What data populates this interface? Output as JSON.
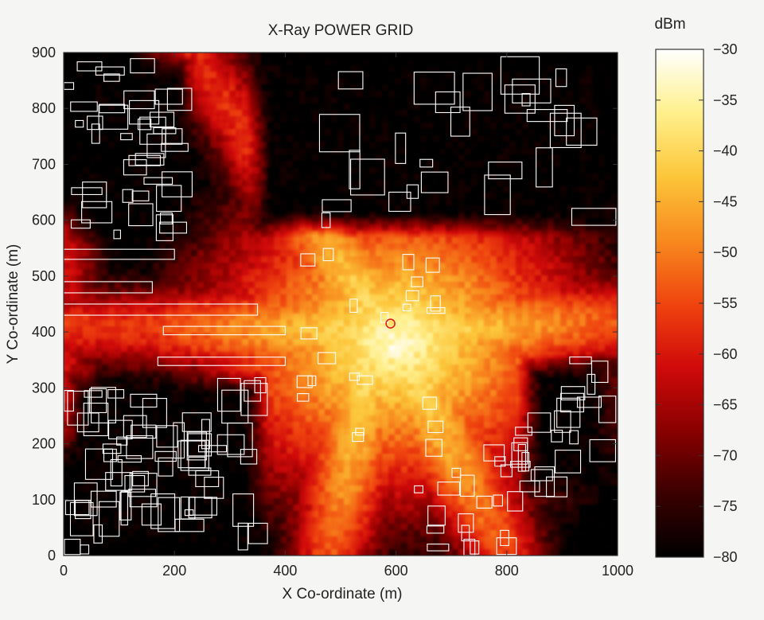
{
  "chart_data": {
    "type": "heatmap",
    "title": "X-Ray POWER GRID",
    "xlabel": "X Co-ordinate (m)",
    "ylabel": "Y Co-ordinate (m)",
    "xlim": [
      0,
      1000
    ],
    "ylim": [
      0,
      900
    ],
    "x_ticks": [
      0,
      200,
      400,
      600,
      800,
      1000
    ],
    "y_ticks": [
      0,
      100,
      200,
      300,
      400,
      500,
      600,
      700,
      800,
      900
    ],
    "grid": false,
    "colorbar": {
      "label": "dBm",
      "range": [
        -80,
        -30
      ],
      "ticks": [
        -30,
        -35,
        -40,
        -45,
        -50,
        -55,
        -60,
        -65,
        -70,
        -75,
        -80
      ],
      "colormap": [
        "#000000",
        "#3a0000",
        "#8a0000",
        "#d10a0a",
        "#f0450f",
        "#f88a1e",
        "#fcc63a",
        "#fff08c",
        "#ffffff"
      ]
    },
    "transmitter": {
      "x": 590,
      "y": 415,
      "color": "#e02020"
    },
    "building_outline_color": "#ffffff",
    "field_shape": {
      "peak": {
        "x": 600,
        "y": 380,
        "value": -30
      },
      "streets": [
        {
          "name": "diagonal-ne",
          "from": [
            230,
            900
          ],
          "to": [
            600,
            380
          ],
          "level": -58
        },
        {
          "name": "horizontal-w",
          "from": [
            0,
            410
          ],
          "to": [
            600,
            400
          ],
          "level": -57
        },
        {
          "name": "horizontal-e",
          "from": [
            600,
            400
          ],
          "to": [
            1000,
            420
          ],
          "level": -57
        },
        {
          "name": "vertical-s",
          "from": [
            560,
            380
          ],
          "to": [
            480,
            0
          ],
          "level": -57
        },
        {
          "name": "diagonal-se",
          "from": [
            600,
            380
          ],
          "to": [
            800,
            0
          ],
          "level": -60
        },
        {
          "name": "left-strip",
          "from": [
            0,
            250
          ],
          "to": [
            0,
            560
          ],
          "level": -62
        }
      ],
      "dark_regions": [
        {
          "name": "north-block",
          "from": [
            330,
            570
          ],
          "to": [
            1000,
            900
          ]
        },
        {
          "name": "northwest-block",
          "from": [
            0,
            560
          ],
          "to": [
            240,
            900
          ]
        },
        {
          "name": "southwest-block",
          "from": [
            0,
            0
          ],
          "to": [
            370,
            330
          ]
        },
        {
          "name": "southeast-block",
          "from": [
            820,
            100
          ],
          "to": [
            1000,
            360
          ]
        }
      ]
    }
  }
}
